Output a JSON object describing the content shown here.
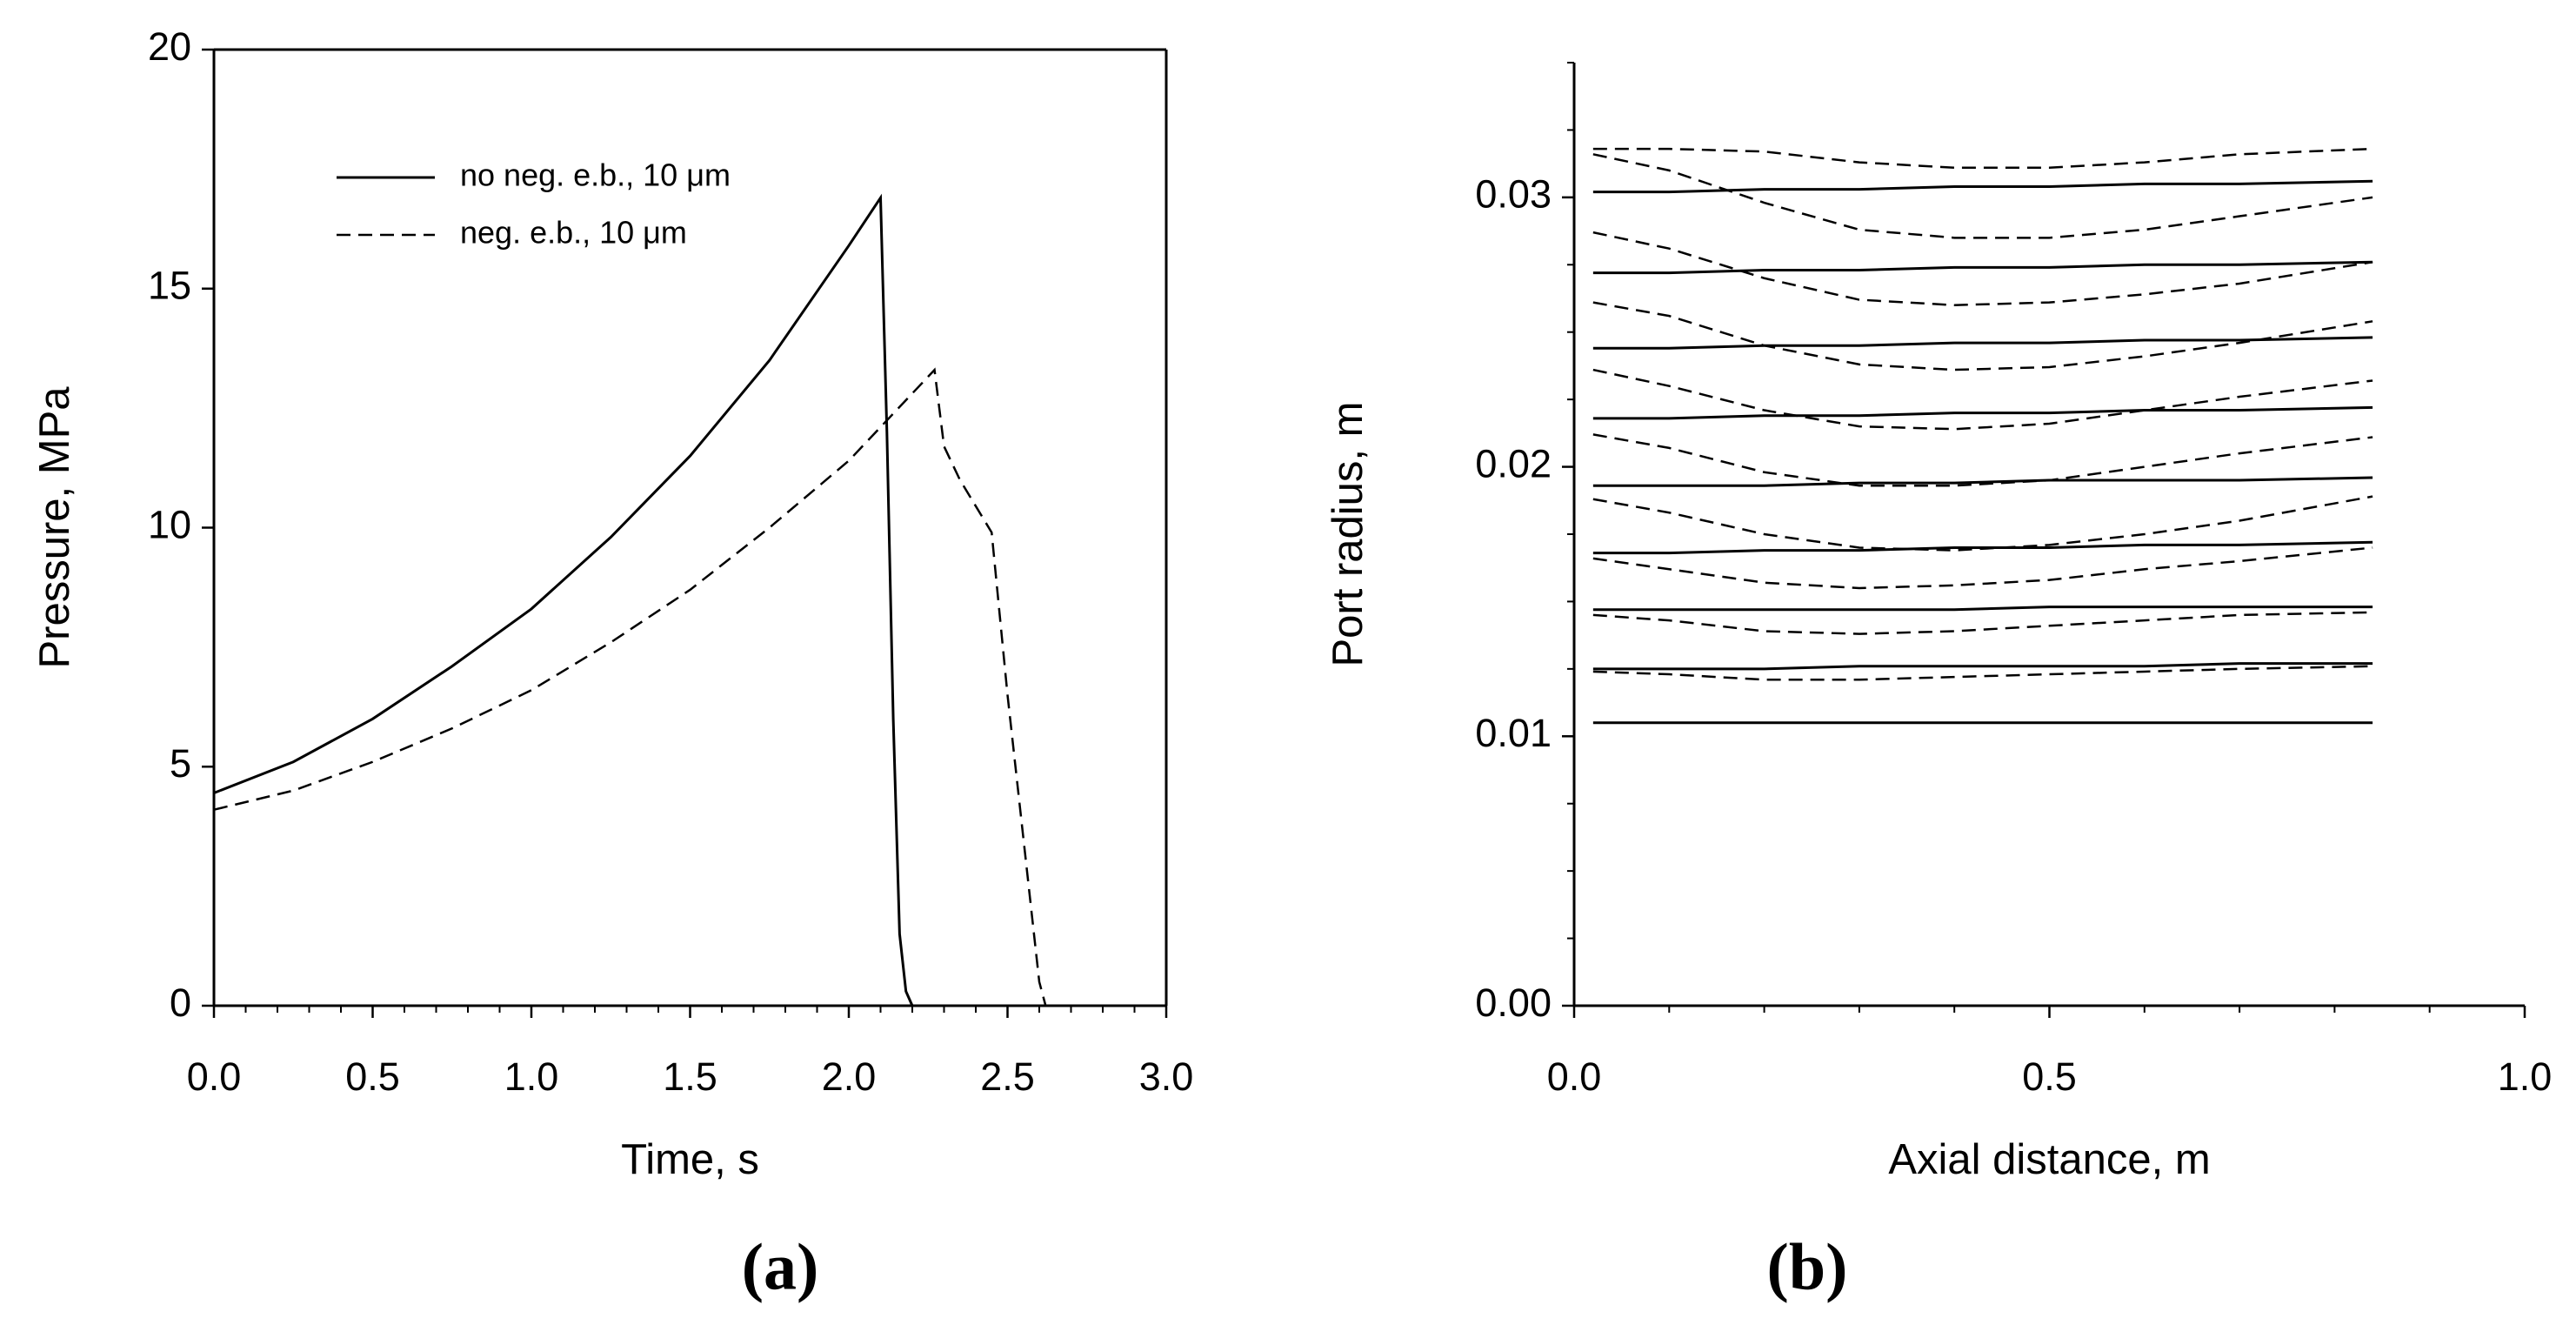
{
  "chart_data": [
    {
      "type": "line",
      "panel_label": "(a)",
      "xlabel": "Time, s",
      "ylabel": "Pressure, MPa",
      "xlim": [
        0,
        3
      ],
      "xticks": [
        {
          "value": 0,
          "label": "0.0"
        },
        0.5,
        {
          "value": 1,
          "label": "1.0"
        },
        1.5,
        {
          "value": 2,
          "label": "2.0"
        },
        2.5,
        {
          "value": 3,
          "label": "3.0"
        }
      ],
      "xminorticks": [
        0.1,
        0.2,
        0.3,
        0.4,
        0.6,
        0.7,
        0.8,
        0.9,
        1.1,
        1.2,
        1.3,
        1.4,
        1.6,
        1.7,
        1.8,
        1.9,
        2.1,
        2.2,
        2.3,
        2.4,
        2.6,
        2.7,
        2.8,
        2.9
      ],
      "ylim": [
        0,
        20
      ],
      "yticks": [
        0,
        5,
        10,
        15,
        20
      ],
      "box": true,
      "legend": "upper left",
      "series": [
        {
          "name": "no neg. e.b., 10 μm",
          "color": "#000000",
          "dashed": false,
          "x": [
            0,
            0.25,
            0.5,
            0.75,
            1.0,
            1.25,
            1.5,
            1.75,
            2.0,
            2.1,
            2.12,
            2.14,
            2.16,
            2.18,
            2.2
          ],
          "values": [
            4.45,
            5.1,
            6.0,
            7.1,
            8.3,
            9.8,
            11.5,
            13.5,
            15.9,
            16.9,
            12,
            6,
            1.5,
            0.3,
            0
          ]
        },
        {
          "name": "neg. e.b., 10 μm",
          "color": "#000000",
          "dashed": true,
          "x": [
            0,
            0.25,
            0.5,
            0.75,
            1.0,
            1.25,
            1.5,
            1.75,
            2.0,
            2.27,
            2.3,
            2.35,
            2.45,
            2.5,
            2.55,
            2.6,
            2.62
          ],
          "values": [
            4.1,
            4.5,
            5.1,
            5.8,
            6.6,
            7.6,
            8.7,
            10,
            11.4,
            13.3,
            11.7,
            11.0,
            9.9,
            6.5,
            3.5,
            0.5,
            0
          ]
        }
      ]
    },
    {
      "type": "line",
      "panel_label": "(b)",
      "xlabel": "Axial distance, m",
      "ylabel": "Port radius, m",
      "xlim": [
        0,
        1
      ],
      "xticks": [
        {
          "value": 0,
          "label": "0.0"
        },
        0.5,
        {
          "value": 1,
          "label": "1.0"
        }
      ],
      "xminorticks": [
        0.1,
        0.2,
        0.3,
        0.4,
        0.6,
        0.7,
        0.8,
        0.9
      ],
      "ylim": [
        0,
        0.035
      ],
      "yticks": [
        {
          "value": 0,
          "label": "0.00"
        },
        0.01,
        0.02,
        0.03
      ],
      "yminorticks": [
        0.0025,
        0.005,
        0.0075,
        0.0125,
        0.015,
        0.0175,
        0.0225,
        0.025,
        0.0275,
        0.0325,
        0.035
      ],
      "box": false,
      "x": [
        0.02,
        0.1,
        0.2,
        0.3,
        0.4,
        0.5,
        0.6,
        0.7,
        0.84
      ],
      "series": [
        {
          "color": "#000000",
          "dashed": false,
          "values": [
            0.0105,
            0.0105,
            0.0105,
            0.0105,
            0.0105,
            0.0105,
            0.0105,
            0.0105,
            0.0105
          ]
        },
        {
          "color": "#000000",
          "dashed": false,
          "values": [
            0.0125,
            0.0125,
            0.0125,
            0.0126,
            0.0126,
            0.0126,
            0.0126,
            0.0127,
            0.0127
          ]
        },
        {
          "color": "#000000",
          "dashed": false,
          "values": [
            0.0147,
            0.0147,
            0.0147,
            0.0147,
            0.0147,
            0.0148,
            0.0148,
            0.0148,
            0.0148
          ]
        },
        {
          "color": "#000000",
          "dashed": false,
          "values": [
            0.0168,
            0.0168,
            0.0169,
            0.0169,
            0.017,
            0.017,
            0.0171,
            0.0171,
            0.0172
          ]
        },
        {
          "color": "#000000",
          "dashed": false,
          "values": [
            0.0193,
            0.0193,
            0.0193,
            0.0194,
            0.0194,
            0.0195,
            0.0195,
            0.0195,
            0.0196
          ]
        },
        {
          "color": "#000000",
          "dashed": false,
          "values": [
            0.0218,
            0.0218,
            0.0219,
            0.0219,
            0.022,
            0.022,
            0.0221,
            0.0221,
            0.0222
          ]
        },
        {
          "color": "#000000",
          "dashed": false,
          "values": [
            0.0244,
            0.0244,
            0.0245,
            0.0245,
            0.0246,
            0.0246,
            0.0247,
            0.0247,
            0.0248
          ]
        },
        {
          "color": "#000000",
          "dashed": false,
          "values": [
            0.0272,
            0.0272,
            0.0273,
            0.0273,
            0.0274,
            0.0274,
            0.0275,
            0.0275,
            0.0276
          ]
        },
        {
          "color": "#000000",
          "dashed": false,
          "values": [
            0.0302,
            0.0302,
            0.0303,
            0.0303,
            0.0304,
            0.0304,
            0.0305,
            0.0305,
            0.0306
          ]
        },
        {
          "color": "#000000",
          "dashed": true,
          "values": [
            0.0318,
            0.0318,
            0.0317,
            0.0313,
            0.0311,
            0.0311,
            0.0313,
            0.0316,
            0.0318
          ]
        },
        {
          "color": "#000000",
          "dashed": true,
          "values": [
            0.0316,
            0.031,
            0.0298,
            0.0288,
            0.0285,
            0.0285,
            0.0288,
            0.0293,
            0.03
          ]
        },
        {
          "color": "#000000",
          "dashed": true,
          "values": [
            0.0287,
            0.0281,
            0.027,
            0.0262,
            0.026,
            0.0261,
            0.0264,
            0.0268,
            0.0276
          ]
        },
        {
          "color": "#000000",
          "dashed": true,
          "values": [
            0.0261,
            0.0256,
            0.0245,
            0.0238,
            0.0236,
            0.0237,
            0.0241,
            0.0246,
            0.0254
          ]
        },
        {
          "color": "#000000",
          "dashed": true,
          "values": [
            0.0236,
            0.023,
            0.0221,
            0.0215,
            0.0214,
            0.0216,
            0.0221,
            0.0226,
            0.0232
          ]
        },
        {
          "color": "#000000",
          "dashed": true,
          "values": [
            0.0212,
            0.0207,
            0.0198,
            0.0193,
            0.0193,
            0.0195,
            0.02,
            0.0205,
            0.0211
          ]
        },
        {
          "color": "#000000",
          "dashed": true,
          "values": [
            0.0188,
            0.0183,
            0.0175,
            0.017,
            0.0169,
            0.0171,
            0.0175,
            0.018,
            0.0189
          ]
        },
        {
          "color": "#000000",
          "dashed": true,
          "values": [
            0.0166,
            0.0162,
            0.0157,
            0.0155,
            0.0156,
            0.0158,
            0.0162,
            0.0165,
            0.017
          ]
        },
        {
          "color": "#000000",
          "dashed": true,
          "values": [
            0.0145,
            0.0143,
            0.0139,
            0.0138,
            0.0139,
            0.0141,
            0.0143,
            0.0145,
            0.0146
          ]
        },
        {
          "color": "#000000",
          "dashed": true,
          "values": [
            0.0124,
            0.0123,
            0.0121,
            0.0121,
            0.0122,
            0.0123,
            0.0124,
            0.0125,
            0.0126
          ]
        }
      ]
    }
  ]
}
